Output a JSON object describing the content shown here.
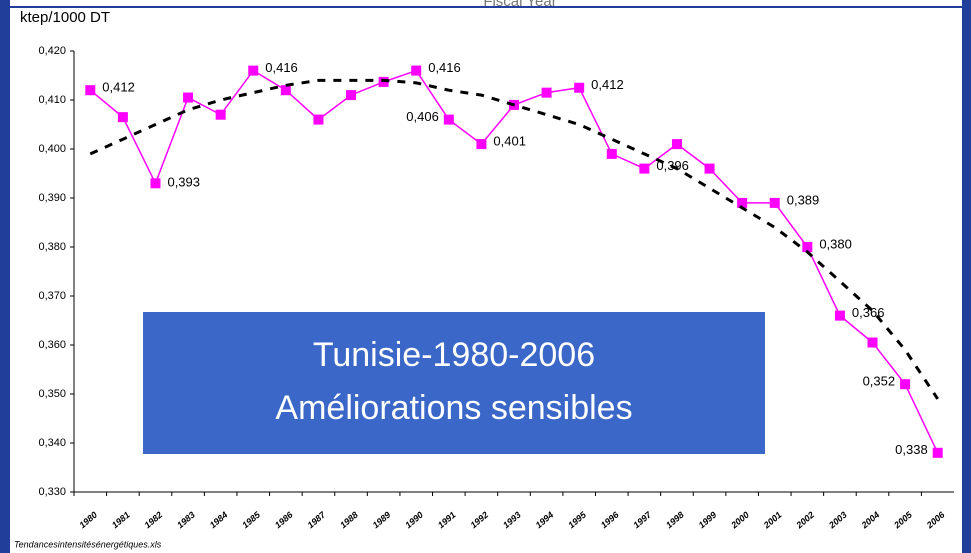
{
  "chart_data": {
    "type": "line",
    "top_text": "Fiscal Year",
    "ylabel": "ktep/1000 DT",
    "annotation": [
      "Tunisie-1980-2006",
      "Améliorations sensibles"
    ],
    "footer": "Tendancesintensitésénergétiques.xls",
    "categories": [
      "1980",
      "1981",
      "1982",
      "1983",
      "1984",
      "1985",
      "1986",
      "1987",
      "1988",
      "1989",
      "1990",
      "1991",
      "1992",
      "1993",
      "1994",
      "1995",
      "1996",
      "1997",
      "1998",
      "1999",
      "2000",
      "2001",
      "2002",
      "2003",
      "2004",
      "2005",
      "2006"
    ],
    "series": [
      {
        "color": "#ff00ff",
        "values": [
          0.412,
          0.4065,
          0.393,
          0.4105,
          0.407,
          0.416,
          0.412,
          0.406,
          0.411,
          0.4137,
          0.416,
          0.406,
          0.401,
          0.409,
          0.4115,
          0.4125,
          0.399,
          0.396,
          0.401,
          0.396,
          0.389,
          0.389,
          0.38,
          0.366,
          0.3605,
          0.352,
          0.338
        ],
        "value_labels": [
          "0,412",
          null,
          "0,393",
          null,
          null,
          "0,416",
          null,
          null,
          null,
          null,
          "0,416",
          "0,406",
          "0,401",
          null,
          null,
          "0,412",
          null,
          "0,396",
          null,
          null,
          null,
          "0,389",
          "0,380",
          "0,366",
          null,
          "0,352",
          "0,338"
        ]
      },
      {
        "color": "#000000",
        "dashed": true,
        "values": [
          0.399,
          0.402,
          0.405,
          0.408,
          0.41,
          0.4115,
          0.413,
          0.414,
          0.414,
          0.414,
          0.4135,
          0.412,
          0.411,
          0.409,
          0.407,
          0.405,
          0.402,
          0.399,
          0.396,
          0.392,
          0.388,
          0.384,
          0.379,
          0.373,
          0.367,
          0.359,
          0.349
        ]
      }
    ],
    "ylim": [
      0.33,
      0.42
    ],
    "yticks": [
      {
        "value": 0.33,
        "label": "0,330"
      },
      {
        "value": 0.34,
        "label": "0,340"
      },
      {
        "value": 0.35,
        "label": "0,350"
      },
      {
        "value": 0.36,
        "label": "0,360"
      },
      {
        "value": 0.37,
        "label": "0,370"
      },
      {
        "value": 0.38,
        "label": "0,380"
      },
      {
        "value": 0.39,
        "label": "0,390"
      },
      {
        "value": 0.4,
        "label": "0,400"
      },
      {
        "value": 0.41,
        "label": "0,410"
      },
      {
        "value": 0.42,
        "label": "0,420"
      }
    ]
  }
}
